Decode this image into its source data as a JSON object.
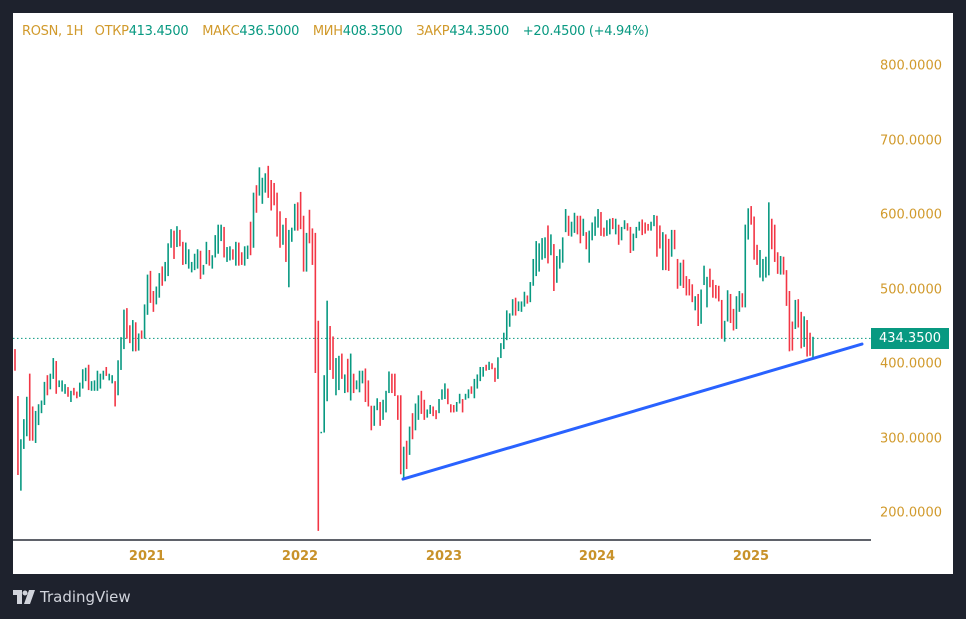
{
  "header": {
    "symbol": "ROSN, 1Н",
    "open_label": "ОТКР",
    "open": "413.4500",
    "high_label": "МАКС",
    "high": "436.5000",
    "low_label": "МИН",
    "low": "408.3500",
    "close_label": "ЗАКР",
    "close": "434.3500",
    "change": "+20.4500 (+4.94%)"
  },
  "colors": {
    "up": "#089981",
    "down": "#f23645",
    "trendline": "#2962ff",
    "axis_text": "#d19a2c",
    "background": "#1e222d"
  },
  "branding": {
    "logo_text": "TradingView",
    "logo_icon": "tradingview-logo-icon"
  },
  "chart_data": {
    "type": "bar",
    "ylim": [
      170,
      850
    ],
    "y_ticks": [
      "800.0000",
      "700.0000",
      "600.0000",
      "500.0000",
      "400.0000",
      "300.0000",
      "200.0000"
    ],
    "y_tick_values": [
      800,
      700,
      600,
      500,
      400,
      300,
      200
    ],
    "x_ticks": [
      "2021",
      "2022",
      "2023",
      "2024",
      "2025"
    ],
    "last_price": 434.35,
    "last_price_label": "434.3500",
    "trendline": {
      "start_price": 245.6,
      "end_price": 426.8
    },
    "bars_note_format": "[high, low, up(1)/down(0)]",
    "bars": [
      [
        420,
        391,
        0
      ],
      [
        357,
        251,
        0
      ],
      [
        299,
        230,
        1
      ],
      [
        326,
        286,
        1
      ],
      [
        356,
        303,
        1
      ],
      [
        387,
        297,
        0
      ],
      [
        343,
        297,
        0
      ],
      [
        337,
        294,
        1
      ],
      [
        346,
        318,
        1
      ],
      [
        351,
        334,
        1
      ],
      [
        376,
        345,
        1
      ],
      [
        385,
        358,
        0
      ],
      [
        387,
        366,
        1
      ],
      [
        408,
        380,
        1
      ],
      [
        404,
        360,
        0
      ],
      [
        378,
        369,
        1
      ],
      [
        378,
        363,
        1
      ],
      [
        373,
        360,
        1
      ],
      [
        369,
        356,
        0
      ],
      [
        364,
        349,
        1
      ],
      [
        368,
        358,
        0
      ],
      [
        363,
        354,
        0
      ],
      [
        375,
        356,
        1
      ],
      [
        393,
        367,
        1
      ],
      [
        395,
        377,
        1
      ],
      [
        399,
        365,
        0
      ],
      [
        377,
        364,
        1
      ],
      [
        378,
        364,
        1
      ],
      [
        391,
        364,
        1
      ],
      [
        387,
        367,
        1
      ],
      [
        391,
        379,
        1
      ],
      [
        396,
        384,
        0
      ],
      [
        387,
        378,
        1
      ],
      [
        385,
        374,
        1
      ],
      [
        377,
        343,
        0
      ],
      [
        405,
        358,
        1
      ],
      [
        436,
        392,
        1
      ],
      [
        473,
        420,
        1
      ],
      [
        475,
        434,
        0
      ],
      [
        452,
        428,
        0
      ],
      [
        459,
        417,
        1
      ],
      [
        456,
        417,
        0
      ],
      [
        441,
        418,
        1
      ],
      [
        445,
        434,
        0
      ],
      [
        480,
        434,
        1
      ],
      [
        520,
        466,
        1
      ],
      [
        525,
        482,
        0
      ],
      [
        498,
        470,
        0
      ],
      [
        504,
        480,
        1
      ],
      [
        522,
        489,
        1
      ],
      [
        531,
        505,
        0
      ],
      [
        537,
        511,
        1
      ],
      [
        562,
        518,
        1
      ],
      [
        581,
        556,
        1
      ],
      [
        579,
        541,
        0
      ],
      [
        585,
        557,
        1
      ],
      [
        580,
        558,
        0
      ],
      [
        564,
        533,
        0
      ],
      [
        563,
        534,
        1
      ],
      [
        554,
        528,
        1
      ],
      [
        537,
        523,
        1
      ],
      [
        548,
        526,
        1
      ],
      [
        554,
        528,
        1
      ],
      [
        552,
        514,
        0
      ],
      [
        533,
        520,
        1
      ],
      [
        564,
        534,
        1
      ],
      [
        553,
        532,
        0
      ],
      [
        546,
        528,
        1
      ],
      [
        573,
        543,
        1
      ],
      [
        587,
        548,
        1
      ],
      [
        587,
        565,
        1
      ],
      [
        584,
        543,
        0
      ],
      [
        557,
        537,
        1
      ],
      [
        558,
        539,
        1
      ],
      [
        554,
        540,
        0
      ],
      [
        564,
        532,
        1
      ],
      [
        563,
        532,
        0
      ],
      [
        550,
        533,
        0
      ],
      [
        558,
        532,
        1
      ],
      [
        559,
        541,
        1
      ],
      [
        591,
        546,
        0
      ],
      [
        630,
        556,
        1
      ],
      [
        640,
        603,
        0
      ],
      [
        664,
        626,
        1
      ],
      [
        650,
        615,
        1
      ],
      [
        656,
        630,
        1
      ],
      [
        666,
        623,
        0
      ],
      [
        647,
        606,
        0
      ],
      [
        643,
        613,
        0
      ],
      [
        630,
        571,
        0
      ],
      [
        605,
        556,
        0
      ],
      [
        587,
        560,
        1
      ],
      [
        596,
        537,
        0
      ],
      [
        580,
        503,
        1
      ],
      [
        583,
        564,
        1
      ],
      [
        615,
        579,
        1
      ],
      [
        617,
        579,
        0
      ],
      [
        631,
        581,
        0
      ],
      [
        599,
        524,
        0
      ],
      [
        576,
        524,
        1
      ],
      [
        607,
        562,
        0
      ],
      [
        582,
        533,
        0
      ],
      [
        576,
        388,
        0
      ],
      [
        458,
        176,
        0
      ],
      [
        309,
        308,
        1
      ],
      [
        385,
        308,
        1
      ],
      [
        485,
        350,
        1
      ],
      [
        451,
        392,
        0
      ],
      [
        437,
        380,
        0
      ],
      [
        408,
        358,
        1
      ],
      [
        411,
        365,
        1
      ],
      [
        414,
        380,
        0
      ],
      [
        386,
        361,
        1
      ],
      [
        407,
        362,
        0
      ],
      [
        414,
        351,
        1
      ],
      [
        387,
        361,
        0
      ],
      [
        378,
        366,
        1
      ],
      [
        391,
        362,
        1
      ],
      [
        391,
        374,
        1
      ],
      [
        394,
        349,
        0
      ],
      [
        378,
        343,
        0
      ],
      [
        344,
        311,
        0
      ],
      [
        344,
        317,
        1
      ],
      [
        354,
        338,
        1
      ],
      [
        349,
        317,
        0
      ],
      [
        352,
        325,
        1
      ],
      [
        364,
        335,
        1
      ],
      [
        390,
        361,
        1
      ],
      [
        387,
        361,
        0
      ],
      [
        387,
        357,
        0
      ],
      [
        358,
        325,
        0
      ],
      [
        358,
        252,
        0
      ],
      [
        289,
        247,
        1
      ],
      [
        297,
        259,
        0
      ],
      [
        316,
        278,
        1
      ],
      [
        334,
        299,
        0
      ],
      [
        347,
        311,
        1
      ],
      [
        358,
        325,
        1
      ],
      [
        364,
        333,
        0
      ],
      [
        352,
        325,
        0
      ],
      [
        339,
        328,
        1
      ],
      [
        345,
        333,
        1
      ],
      [
        343,
        330,
        0
      ],
      [
        338,
        326,
        0
      ],
      [
        353,
        334,
        1
      ],
      [
        366,
        352,
        1
      ],
      [
        374,
        353,
        1
      ],
      [
        367,
        346,
        0
      ],
      [
        346,
        335,
        0
      ],
      [
        345,
        335,
        0
      ],
      [
        349,
        336,
        1
      ],
      [
        360,
        347,
        1
      ],
      [
        353,
        335,
        0
      ],
      [
        360,
        352,
        1
      ],
      [
        366,
        354,
        1
      ],
      [
        370,
        360,
        0
      ],
      [
        380,
        354,
        1
      ],
      [
        386,
        367,
        1
      ],
      [
        396,
        377,
        1
      ],
      [
        396,
        383,
        1
      ],
      [
        399,
        391,
        0
      ],
      [
        403,
        392,
        1
      ],
      [
        401,
        393,
        0
      ],
      [
        395,
        376,
        0
      ],
      [
        409,
        380,
        1
      ],
      [
        428,
        408,
        1
      ],
      [
        442,
        420,
        1
      ],
      [
        472,
        432,
        1
      ],
      [
        468,
        450,
        1
      ],
      [
        487,
        465,
        1
      ],
      [
        489,
        465,
        0
      ],
      [
        484,
        471,
        1
      ],
      [
        484,
        470,
        1
      ],
      [
        497,
        477,
        1
      ],
      [
        492,
        481,
        0
      ],
      [
        510,
        483,
        1
      ],
      [
        541,
        505,
        1
      ],
      [
        565,
        518,
        1
      ],
      [
        562,
        524,
        1
      ],
      [
        569,
        540,
        1
      ],
      [
        570,
        542,
        1
      ],
      [
        586,
        535,
        0
      ],
      [
        574,
        546,
        1
      ],
      [
        561,
        498,
        0
      ],
      [
        545,
        509,
        1
      ],
      [
        554,
        528,
        1
      ],
      [
        570,
        536,
        1
      ],
      [
        608,
        577,
        1
      ],
      [
        599,
        572,
        0
      ],
      [
        591,
        571,
        1
      ],
      [
        603,
        576,
        1
      ],
      [
        599,
        574,
        0
      ],
      [
        599,
        562,
        0
      ],
      [
        595,
        572,
        1
      ],
      [
        577,
        554,
        0
      ],
      [
        579,
        536,
        1
      ],
      [
        590,
        566,
        1
      ],
      [
        598,
        572,
        1
      ],
      [
        608,
        583,
        1
      ],
      [
        604,
        572,
        0
      ],
      [
        583,
        571,
        0
      ],
      [
        593,
        572,
        1
      ],
      [
        595,
        574,
        1
      ],
      [
        596,
        581,
        0
      ],
      [
        595,
        574,
        1
      ],
      [
        587,
        560,
        0
      ],
      [
        584,
        566,
        1
      ],
      [
        593,
        581,
        1
      ],
      [
        589,
        579,
        0
      ],
      [
        584,
        549,
        0
      ],
      [
        575,
        552,
        1
      ],
      [
        584,
        569,
        1
      ],
      [
        591,
        579,
        1
      ],
      [
        594,
        573,
        0
      ],
      [
        590,
        575,
        0
      ],
      [
        588,
        579,
        0
      ],
      [
        591,
        579,
        1
      ],
      [
        600,
        585,
        1
      ],
      [
        599,
        544,
        0
      ],
      [
        586,
        555,
        0
      ],
      [
        577,
        526,
        1
      ],
      [
        574,
        526,
        0
      ],
      [
        568,
        525,
        0
      ],
      [
        580,
        544,
        1
      ],
      [
        580,
        554,
        0
      ],
      [
        541,
        501,
        0
      ],
      [
        536,
        505,
        1
      ],
      [
        540,
        502,
        0
      ],
      [
        518,
        492,
        0
      ],
      [
        514,
        492,
        0
      ],
      [
        507,
        483,
        0
      ],
      [
        491,
        472,
        1
      ],
      [
        494,
        451,
        0
      ],
      [
        500,
        454,
        1
      ],
      [
        532,
        506,
        1
      ],
      [
        517,
        476,
        1
      ],
      [
        528,
        503,
        0
      ],
      [
        513,
        489,
        0
      ],
      [
        506,
        488,
        0
      ],
      [
        505,
        484,
        0
      ],
      [
        486,
        434,
        0
      ],
      [
        458,
        430,
        1
      ],
      [
        499,
        457,
        1
      ],
      [
        494,
        455,
        0
      ],
      [
        474,
        445,
        0
      ],
      [
        491,
        447,
        1
      ],
      [
        498,
        470,
        1
      ],
      [
        495,
        476,
        0
      ],
      [
        587,
        476,
        1
      ],
      [
        609,
        567,
        1
      ],
      [
        612,
        587,
        0
      ],
      [
        598,
        540,
        0
      ],
      [
        560,
        533,
        0
      ],
      [
        553,
        516,
        1
      ],
      [
        541,
        511,
        1
      ],
      [
        544,
        516,
        1
      ],
      [
        617,
        519,
        1
      ],
      [
        595,
        554,
        0
      ],
      [
        587,
        537,
        0
      ],
      [
        550,
        521,
        0
      ],
      [
        545,
        520,
        1
      ],
      [
        544,
        520,
        0
      ],
      [
        526,
        478,
        0
      ],
      [
        498,
        417,
        0
      ],
      [
        457,
        418,
        0
      ],
      [
        486,
        447,
        1
      ],
      [
        487,
        449,
        0
      ],
      [
        470,
        421,
        0
      ],
      [
        464,
        423,
        1
      ],
      [
        459,
        410,
        0
      ],
      [
        442,
        411,
        0
      ],
      [
        436.5,
        408.35,
        1
      ]
    ]
  }
}
